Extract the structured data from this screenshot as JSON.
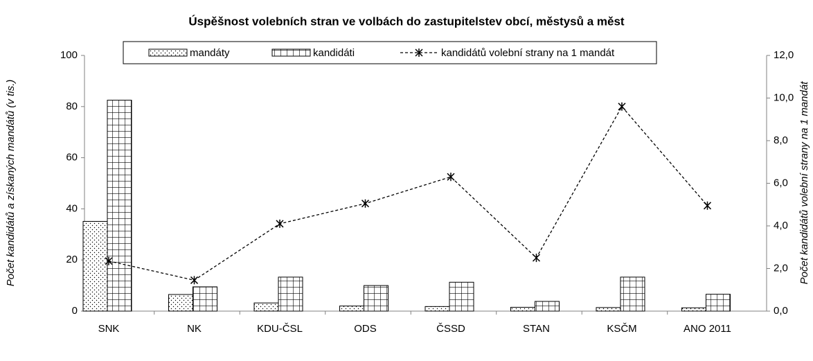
{
  "chart_data": {
    "type": "bar-line",
    "title": "Úspěšnost volebních stran ve volbách do zastupitelstev obcí, městysů a měst",
    "y_label": "Počet kandidátů a získaných mandátů (v tis.)",
    "y2_label": "Počet kandidátů volební strany na 1 mandát",
    "categories": [
      "SNK",
      "NK",
      "KDU-ČSL",
      "ODS",
      "ČSSD",
      "STAN",
      "KSČM",
      "ANO 2011"
    ],
    "series": [
      {
        "name": "mandáty",
        "type": "bar",
        "pattern": "dots",
        "values": [
          35.1,
          6.5,
          3.2,
          2.0,
          1.8,
          1.5,
          1.4,
          1.3
        ]
      },
      {
        "name": "kandidáti",
        "type": "bar",
        "pattern": "grid",
        "values": [
          82.5,
          9.5,
          13.3,
          10.0,
          11.3,
          3.8,
          13.3,
          6.6
        ]
      },
      {
        "name": "kandidátů volební strany na 1 mandát",
        "type": "line",
        "axis": "y2",
        "color": "#000000",
        "values": [
          2.35,
          1.45,
          4.1,
          5.05,
          6.3,
          2.5,
          9.6,
          4.95
        ]
      }
    ],
    "ylim": [
      0,
      100
    ],
    "yticks": [
      0,
      20,
      40,
      60,
      80,
      100
    ],
    "y2lim": [
      0,
      12
    ],
    "y2ticks": [
      {
        "value": 0,
        "label": "0,0"
      },
      {
        "value": 2,
        "label": "2,0"
      },
      {
        "value": 4,
        "label": "4,0"
      },
      {
        "value": 6,
        "label": "6,0"
      },
      {
        "value": 8,
        "label": "8,0"
      },
      {
        "value": 10,
        "label": "10,0"
      },
      {
        "value": 12,
        "label": "12,0"
      }
    ],
    "legend": "top"
  }
}
